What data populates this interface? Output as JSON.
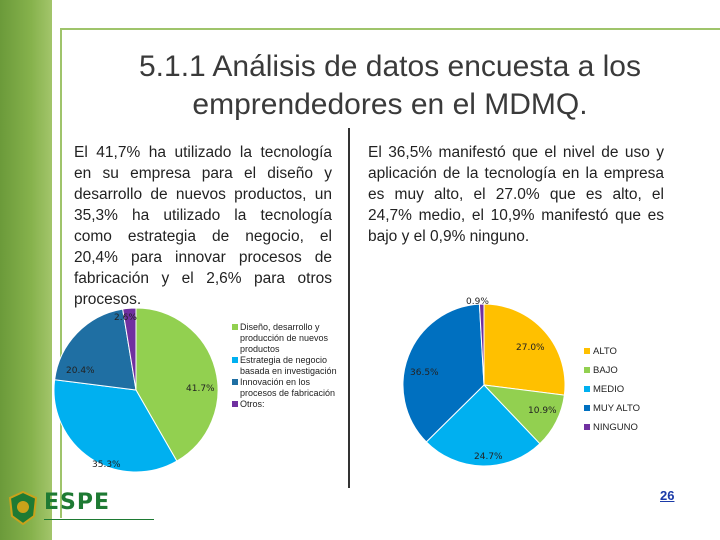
{
  "slide": {
    "title_line1": "5.1.1 Análisis de datos encuesta a los",
    "title_line2": "emprendedores en el MDMQ.",
    "left_text": "El 41,7% ha utilizado la tecnología en su empresa para el diseño y desarrollo de nuevos productos, un 35,3% ha utilizado la tecnología como estrategia de negocio, el 20,4% para innovar procesos de fabricación y el 2,6% para otros procesos.",
    "right_text": "El 36,5% manifestó que el nivel de uso y aplicación de la tecnología en la empresa es muy alto, el 27.0% que es alto, el 24,7% medio, el 10,9% manifestó que es bajo y el 0,9% ninguno.",
    "page_number": "26",
    "logo_text": "ESPE"
  },
  "chart_data": [
    {
      "type": "pie",
      "categories": [
        "Diseño, desarrollo y producción de nuevos productos",
        "Estrategia de negocio basada en investigación",
        "Innovación en los procesos de fabricación",
        "Otros:"
      ],
      "values": [
        41.7,
        35.3,
        20.4,
        2.6
      ],
      "labels": [
        "41.7%",
        "35.3%",
        "20.4%",
        "2.6%"
      ],
      "colors": [
        "#92d050",
        "#00b0f0",
        "#1f6fa3",
        "#7030a0"
      ],
      "legend": "right"
    },
    {
      "type": "pie",
      "categories": [
        "ALTO",
        "BAJO",
        "MEDIO",
        "MUY ALTO",
        "NINGUNO"
      ],
      "values": [
        27.0,
        10.9,
        24.7,
        36.5,
        0.9
      ],
      "labels": [
        "27.0%",
        "10.9%",
        "24.7%",
        "36.5%",
        "0.9%"
      ],
      "colors": [
        "#ffc000",
        "#92d050",
        "#00b0f0",
        "#0070c0",
        "#7030a0"
      ],
      "legend": "right"
    }
  ]
}
